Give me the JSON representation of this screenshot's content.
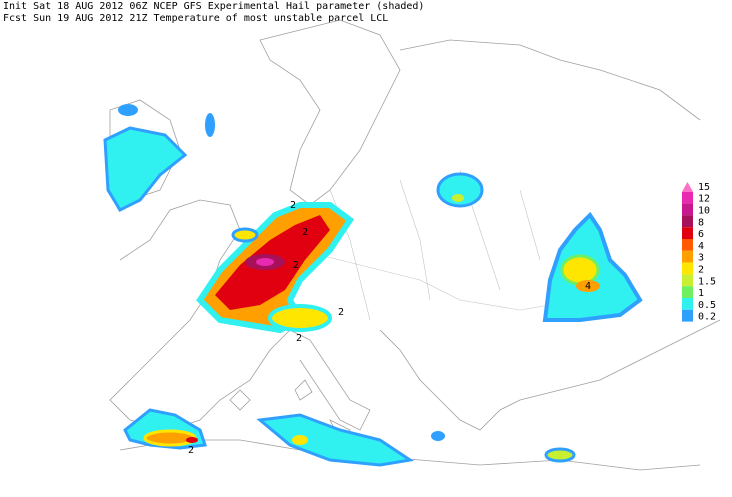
{
  "header": {
    "lines": [
      "Init  Sat 18 AUG 2012 06Z  NCEP GFS Experimental Hail parameter (shaded)",
      "Fcst Sun 19 AUG 2012 21Z  Temperature of most unstable parcel LCL"
    ]
  },
  "legend": {
    "levels": [
      {
        "value": 15,
        "color": "#ff6fc8"
      },
      {
        "value": 12,
        "color": "#e82ab0"
      },
      {
        "value": 10,
        "color": "#c81890"
      },
      {
        "value": 8,
        "color": "#a8105a"
      },
      {
        "value": 6,
        "color": "#e00010"
      },
      {
        "value": 4,
        "color": "#ff5a00"
      },
      {
        "value": 3,
        "color": "#ffa000"
      },
      {
        "value": 2,
        "color": "#ffe600"
      },
      {
        "value": 1.5,
        "color": "#c8f030"
      },
      {
        "value": 1,
        "color": "#70f060"
      },
      {
        "value": 0.5,
        "color": "#30f0f0"
      },
      {
        "value": 0.2,
        "color": "#30a0ff"
      }
    ]
  },
  "contour_labels": [
    2,
    2,
    2,
    2,
    2,
    4,
    2
  ]
}
